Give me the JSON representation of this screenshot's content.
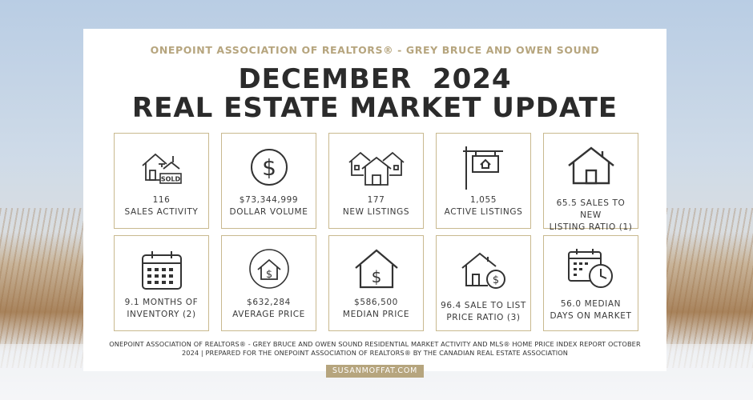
{
  "header": {
    "subtitle": "ONEPOINT ASSOCIATION OF REALTORS® - GREY BRUCE AND OWEN SOUND",
    "title_line1": "DECEMBER  2024",
    "title_line2": "REAL ESTATE MARKET UPDATE"
  },
  "stats": [
    {
      "icon": "sold-house-icon",
      "lines": [
        "116",
        "SALES ACTIVITY"
      ]
    },
    {
      "icon": "dollar-circle-icon",
      "lines": [
        "$73,344,999",
        "DOLLAR VOLUME"
      ]
    },
    {
      "icon": "houses-icon",
      "lines": [
        "177",
        "NEW LISTINGS"
      ]
    },
    {
      "icon": "listing-sign-icon",
      "lines": [
        "1,055",
        "ACTIVE LISTINGS"
      ]
    },
    {
      "icon": "house-icon",
      "lines": [
        "65.5 SALES TO NEW",
        "LISTING RATIO (1)"
      ]
    },
    {
      "icon": "calendar-icon",
      "lines": [
        "9.1 MONTHS OF",
        "INVENTORY (2)"
      ]
    },
    {
      "icon": "house-dollar-circle-icon",
      "lines": [
        "$632,284",
        "AVERAGE PRICE"
      ]
    },
    {
      "icon": "house-dollar-icon",
      "lines": [
        "$586,500",
        "MEDIAN PRICE"
      ]
    },
    {
      "icon": "house-coin-icon",
      "lines": [
        "96.4 SALE TO LIST",
        "PRICE RATIO (3)"
      ]
    },
    {
      "icon": "calendar-clock-icon",
      "lines": [
        "56.0 MEDIAN",
        "DAYS ON MARKET"
      ]
    }
  ],
  "sold_sign_text": "SOLD",
  "footer": {
    "line1": "ONEPOINT ASSOCIATION OF REALTORS® - GREY BRUCE AND OWEN SOUND RESIDENTIAL MARKET ACTIVITY AND MLS® HOME PRICE INDEX REPORT OCTOBER",
    "line2": "2024 | PREPARED FOR THE ONEPOINT ASSOCIATION OF REALTORS® BY THE CANADIAN REAL ESTATE ASSOCIATION"
  },
  "website": "SUSANMOFFAT.COM",
  "colors": {
    "accent": "#b6a57e",
    "title": "#2b2b2b",
    "card": "#ffffff"
  }
}
